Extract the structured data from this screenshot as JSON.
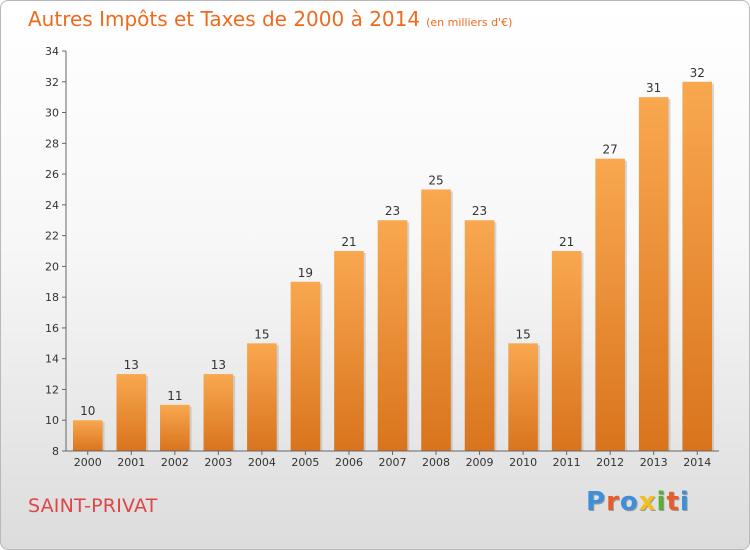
{
  "title": "Autres Impôts et Taxes de 2000 à 2014",
  "subtitle": "(en milliers d'€)",
  "commune": "SAINT-PRIVAT",
  "logo": {
    "letters": [
      "P",
      "r",
      "o",
      "x",
      "i",
      "t",
      "i"
    ],
    "colors": [
      "#3c8fd8",
      "#e85b2a",
      "#3c8fd8",
      "#f2c01e",
      "#58b030",
      "#e85b2a",
      "#3c8fd8"
    ]
  },
  "colors": {
    "bar_top": "#f9a850",
    "bar_bottom": "#d9741d",
    "title": "#ee6b1e",
    "commune": "#e04545"
  },
  "chart_data": {
    "type": "bar",
    "categories": [
      "2000",
      "2001",
      "2002",
      "2003",
      "2004",
      "2005",
      "2006",
      "2007",
      "2008",
      "2009",
      "2010",
      "2011",
      "2012",
      "2013",
      "2014"
    ],
    "values": [
      10,
      13,
      11,
      13,
      15,
      19,
      21,
      23,
      25,
      23,
      15,
      21,
      27,
      31,
      32
    ],
    "ylim": [
      8,
      34
    ],
    "yticks": [
      8,
      10,
      12,
      14,
      16,
      18,
      20,
      22,
      24,
      26,
      28,
      30,
      32,
      34
    ],
    "grid": false,
    "legend": "none"
  }
}
